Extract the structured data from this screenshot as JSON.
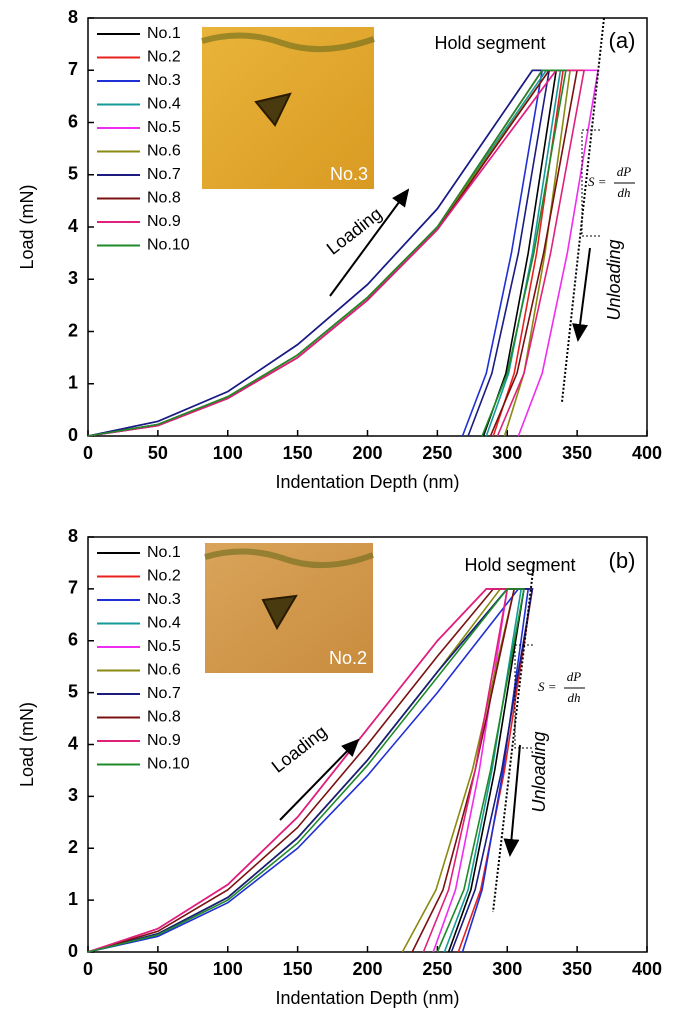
{
  "chart_data": [
    {
      "type": "line",
      "panel_label": "(a)",
      "xlabel": "Indentation Depth (nm)",
      "ylabel": "Load (mN)",
      "xlim": [
        0,
        400
      ],
      "ylim": [
        0,
        8
      ],
      "xticks": [
        0,
        50,
        100,
        150,
        200,
        250,
        300,
        350,
        400
      ],
      "yticks": [
        0,
        1,
        2,
        3,
        4,
        5,
        6,
        7,
        8
      ],
      "inset_label": "No.3",
      "hold_label": "Hold segment",
      "loading_label": "Loading",
      "unloading_label": "Unloading",
      "stiffness": {
        "lhs": "S =",
        "num": "dP",
        "den": "dh"
      },
      "series": [
        {
          "name": "No.1",
          "color": "#000000",
          "x": [
            0,
            50,
            100,
            150,
            200,
            250,
            325,
            335,
            315,
            299,
            283
          ],
          "values": [
            0,
            0.22,
            0.75,
            1.55,
            2.65,
            4.0,
            7,
            7,
            3.5,
            1.2,
            0
          ]
        },
        {
          "name": "No.2",
          "color": "#e8201e",
          "x": [
            0,
            50,
            100,
            150,
            200,
            250,
            325,
            340,
            321,
            305,
            290
          ],
          "values": [
            0,
            0.22,
            0.75,
            1.55,
            2.65,
            4.0,
            7,
            7,
            3.5,
            1.2,
            0
          ]
        },
        {
          "name": "No.3",
          "color": "#1f2fd6",
          "x": [
            0,
            50,
            100,
            150,
            200,
            250,
            318,
            325,
            303,
            285,
            268
          ],
          "values": [
            0,
            0.28,
            0.85,
            1.75,
            2.9,
            4.35,
            7,
            7,
            3.5,
            1.2,
            0
          ]
        },
        {
          "name": "No.4",
          "color": "#159a9a",
          "x": [
            0,
            50,
            100,
            150,
            200,
            250,
            328,
            338,
            318,
            301,
            285
          ],
          "values": [
            0,
            0.22,
            0.75,
            1.55,
            2.65,
            4.0,
            7,
            7,
            3.5,
            1.2,
            0
          ]
        },
        {
          "name": "No.5",
          "color": "#f02cf0",
          "x": [
            0,
            50,
            100,
            150,
            200,
            250,
            335,
            365,
            343,
            325,
            308
          ],
          "values": [
            0,
            0.2,
            0.72,
            1.5,
            2.6,
            3.95,
            7,
            7,
            3.5,
            1.2,
            0
          ]
        },
        {
          "name": "No.6",
          "color": "#8a8a10",
          "x": [
            0,
            50,
            100,
            150,
            200,
            250,
            330,
            345,
            327,
            312,
            298
          ],
          "values": [
            0,
            0.22,
            0.75,
            1.55,
            2.65,
            4.0,
            7,
            7,
            3.5,
            1.2,
            0
          ]
        },
        {
          "name": "No.7",
          "color": "#1b1b80",
          "x": [
            0,
            50,
            100,
            150,
            200,
            250,
            318,
            330,
            308,
            289,
            272
          ],
          "values": [
            0,
            0.28,
            0.85,
            1.75,
            2.9,
            4.35,
            7,
            7,
            3.5,
            1.2,
            0
          ]
        },
        {
          "name": "No.8",
          "color": "#7a1010",
          "x": [
            0,
            50,
            100,
            150,
            200,
            250,
            330,
            350,
            326,
            307,
            288
          ],
          "values": [
            0,
            0.2,
            0.72,
            1.5,
            2.6,
            3.95,
            7,
            7,
            3.5,
            1.2,
            0
          ]
        },
        {
          "name": "No.9",
          "color": "#e0207a",
          "x": [
            0,
            50,
            100,
            150,
            200,
            250,
            335,
            355,
            331,
            312,
            293
          ],
          "values": [
            0,
            0.2,
            0.72,
            1.5,
            2.6,
            3.95,
            7,
            7,
            3.5,
            1.2,
            0
          ]
        },
        {
          "name": "No.10",
          "color": "#1f8a2a",
          "x": [
            0,
            50,
            100,
            150,
            200,
            250,
            325,
            342,
            319,
            300,
            282
          ],
          "values": [
            0,
            0.22,
            0.75,
            1.55,
            2.65,
            4.0,
            7,
            7,
            3.5,
            1.2,
            0
          ]
        }
      ]
    },
    {
      "type": "line",
      "panel_label": "(b)",
      "xlabel": "Indentation Depth (nm)",
      "ylabel": "Load (mN)",
      "xlim": [
        0,
        400
      ],
      "ylim": [
        0,
        8
      ],
      "xticks": [
        0,
        50,
        100,
        150,
        200,
        250,
        300,
        350,
        400
      ],
      "yticks": [
        0,
        1,
        2,
        3,
        4,
        5,
        6,
        7,
        8
      ],
      "inset_label": "No.2",
      "hold_label": "Hold segment",
      "loading_label": "Loading",
      "unloading_label": "Unloading",
      "stiffness": {
        "lhs": "S =",
        "num": "dP",
        "den": "dh"
      },
      "series": [
        {
          "name": "No.1",
          "color": "#000000",
          "x": [
            0,
            50,
            100,
            150,
            200,
            250,
            300,
            312,
            291,
            274,
            258
          ],
          "values": [
            0,
            0.35,
            1.05,
            2.2,
            3.7,
            5.4,
            7,
            7,
            3.5,
            1.2,
            0
          ]
        },
        {
          "name": "No.2",
          "color": "#e8201e",
          "x": [
            0,
            50,
            100,
            150,
            200,
            250,
            285,
            318,
            298,
            281,
            265
          ],
          "values": [
            0,
            0.45,
            1.3,
            2.6,
            4.3,
            6.0,
            7,
            7,
            3.5,
            1.2,
            0
          ]
        },
        {
          "name": "No.3",
          "color": "#1f2fd6",
          "x": [
            0,
            50,
            100,
            150,
            200,
            250,
            308,
            315,
            297,
            282,
            268
          ],
          "values": [
            0,
            0.3,
            0.95,
            2.0,
            3.4,
            5.0,
            7,
            7,
            3.5,
            1.2,
            0
          ]
        },
        {
          "name": "No.4",
          "color": "#159a9a",
          "x": [
            0,
            50,
            100,
            150,
            200,
            250,
            300,
            310,
            289,
            272,
            255
          ],
          "values": [
            0,
            0.35,
            1.05,
            2.2,
            3.7,
            5.4,
            7,
            7,
            3.5,
            1.2,
            0
          ]
        },
        {
          "name": "No.5",
          "color": "#f02cf0",
          "x": [
            0,
            50,
            100,
            150,
            200,
            250,
            285,
            300,
            280,
            263,
            247
          ],
          "values": [
            0,
            0.45,
            1.3,
            2.6,
            4.3,
            6.0,
            7,
            7,
            3.5,
            1.2,
            0
          ]
        },
        {
          "name": "No.6",
          "color": "#8a8a10",
          "x": [
            0,
            50,
            100,
            150,
            200,
            250,
            295,
            305,
            275,
            249,
            225
          ],
          "values": [
            0,
            0.35,
            1.05,
            2.2,
            3.7,
            5.4,
            7,
            7,
            3.5,
            1.2,
            0
          ]
        },
        {
          "name": "No.7",
          "color": "#1b1b80",
          "x": [
            0,
            50,
            100,
            150,
            200,
            250,
            300,
            318,
            296,
            277,
            260
          ],
          "values": [
            0,
            0.35,
            1.05,
            2.2,
            3.7,
            5.4,
            7,
            7,
            3.5,
            1.2,
            0
          ]
        },
        {
          "name": "No.8",
          "color": "#7a1010",
          "x": [
            0,
            50,
            100,
            150,
            200,
            250,
            290,
            305,
            277,
            254,
            232
          ],
          "values": [
            0,
            0.4,
            1.2,
            2.4,
            4.0,
            5.7,
            7,
            7,
            3.5,
            1.2,
            0
          ]
        },
        {
          "name": "No.9",
          "color": "#e0207a",
          "x": [
            0,
            50,
            100,
            150,
            200,
            250,
            285,
            300,
            277,
            258,
            240
          ],
          "values": [
            0,
            0.45,
            1.3,
            2.6,
            4.3,
            6.0,
            7,
            7,
            3.5,
            1.2,
            0
          ]
        },
        {
          "name": "No.10",
          "color": "#1f8a2a",
          "x": [
            0,
            50,
            100,
            150,
            200,
            250,
            300,
            312,
            288,
            269,
            250
          ],
          "values": [
            0,
            0.33,
            1.0,
            2.1,
            3.6,
            5.3,
            7,
            7,
            3.5,
            1.2,
            0
          ]
        }
      ]
    }
  ]
}
